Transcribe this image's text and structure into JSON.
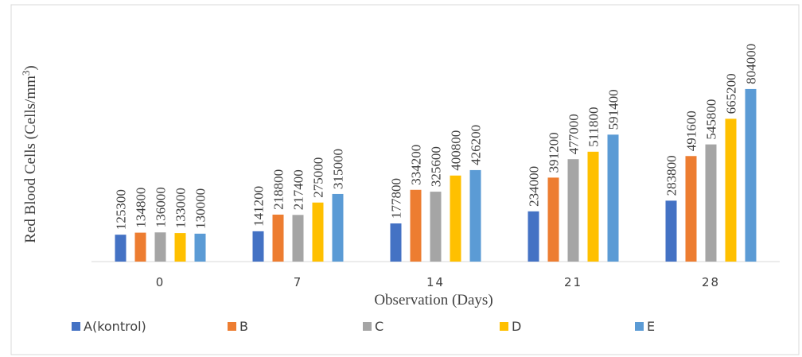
{
  "chart_data": {
    "type": "bar",
    "title": "",
    "xlabel": "Observation (Days)",
    "ylabel_main": "Red Blood Cells (Cells/mm",
    "ylabel_sup": "3",
    "ylabel_end": ")",
    "categories": [
      "0",
      "7",
      "14",
      "21",
      "28"
    ],
    "series": [
      {
        "name": "A(kontrol)",
        "color": "#4472c4",
        "values": [
          125300,
          141200,
          177800,
          234000,
          283800
        ]
      },
      {
        "name": "B",
        "color": "#ed7d31",
        "values": [
          134800,
          218800,
          334200,
          391200,
          491600
        ]
      },
      {
        "name": "C",
        "color": "#a5a5a5",
        "values": [
          136000,
          217400,
          325600,
          477000,
          545800
        ]
      },
      {
        "name": "D",
        "color": "#ffc000",
        "values": [
          133000,
          275000,
          400800,
          511800,
          665200
        ]
      },
      {
        "name": "E",
        "color": "#5b9bd5",
        "values": [
          130000,
          315000,
          426200,
          591400,
          804000
        ]
      }
    ],
    "ylim": [
      0,
      900000
    ],
    "grid": false,
    "legend_position": "bottom"
  }
}
